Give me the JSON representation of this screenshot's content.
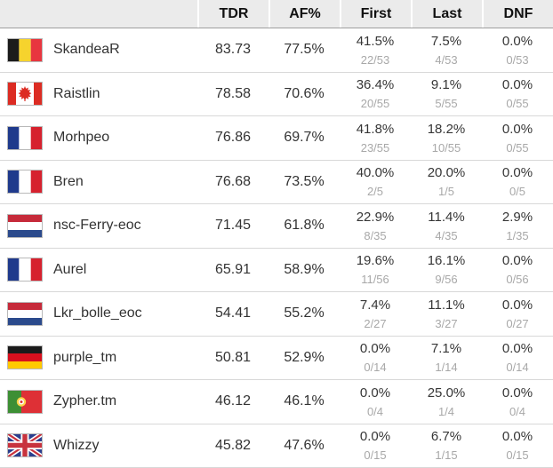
{
  "header": {
    "columns": [
      "",
      "TDR",
      "AF%",
      "First",
      "Last",
      "DNF"
    ]
  },
  "colors": {
    "header_bg": "#ebebeb",
    "header_border": "#9e9e9e",
    "row_border": "#d8d8d8",
    "value_text": "#333333",
    "fraction_text": "#a8a8a8"
  },
  "rows": [
    {
      "flag": "belgium",
      "name": "SkandeaR",
      "tdr": "83.73",
      "af": "77.5%",
      "first_pct": "41.5%",
      "first_frac": "22/53",
      "last_pct": "7.5%",
      "last_frac": "4/53",
      "dnf_pct": "0.0%",
      "dnf_frac": "0/53"
    },
    {
      "flag": "canada",
      "name": "Raistlin",
      "tdr": "78.58",
      "af": "70.6%",
      "first_pct": "36.4%",
      "first_frac": "20/55",
      "last_pct": "9.1%",
      "last_frac": "5/55",
      "dnf_pct": "0.0%",
      "dnf_frac": "0/55"
    },
    {
      "flag": "france",
      "name": "Morhpeo",
      "tdr": "76.86",
      "af": "69.7%",
      "first_pct": "41.8%",
      "first_frac": "23/55",
      "last_pct": "18.2%",
      "last_frac": "10/55",
      "dnf_pct": "0.0%",
      "dnf_frac": "0/55"
    },
    {
      "flag": "france",
      "name": "Bren",
      "tdr": "76.68",
      "af": "73.5%",
      "first_pct": "40.0%",
      "first_frac": "2/5",
      "last_pct": "20.0%",
      "last_frac": "1/5",
      "dnf_pct": "0.0%",
      "dnf_frac": "0/5"
    },
    {
      "flag": "netherlands",
      "name": "nsc-Ferry-eoc",
      "tdr": "71.45",
      "af": "61.8%",
      "first_pct": "22.9%",
      "first_frac": "8/35",
      "last_pct": "11.4%",
      "last_frac": "4/35",
      "dnf_pct": "2.9%",
      "dnf_frac": "1/35"
    },
    {
      "flag": "france",
      "name": "Aurel",
      "tdr": "65.91",
      "af": "58.9%",
      "first_pct": "19.6%",
      "first_frac": "11/56",
      "last_pct": "16.1%",
      "last_frac": "9/56",
      "dnf_pct": "0.0%",
      "dnf_frac": "0/56"
    },
    {
      "flag": "netherlands",
      "name": "Lkr_bolle_eoc",
      "tdr": "54.41",
      "af": "55.2%",
      "first_pct": "7.4%",
      "first_frac": "2/27",
      "last_pct": "11.1%",
      "last_frac": "3/27",
      "dnf_pct": "0.0%",
      "dnf_frac": "0/27"
    },
    {
      "flag": "germany",
      "name": "purple_tm",
      "tdr": "50.81",
      "af": "52.9%",
      "first_pct": "0.0%",
      "first_frac": "0/14",
      "last_pct": "7.1%",
      "last_frac": "1/14",
      "dnf_pct": "0.0%",
      "dnf_frac": "0/14"
    },
    {
      "flag": "portugal",
      "name": "Zypher.tm",
      "tdr": "46.12",
      "af": "46.1%",
      "first_pct": "0.0%",
      "first_frac": "0/4",
      "last_pct": "25.0%",
      "last_frac": "1/4",
      "dnf_pct": "0.0%",
      "dnf_frac": "0/4"
    },
    {
      "flag": "uk",
      "name": "Whizzy",
      "tdr": "45.82",
      "af": "47.6%",
      "first_pct": "0.0%",
      "first_frac": "0/15",
      "last_pct": "6.7%",
      "last_frac": "1/15",
      "dnf_pct": "0.0%",
      "dnf_frac": "0/15"
    }
  ]
}
